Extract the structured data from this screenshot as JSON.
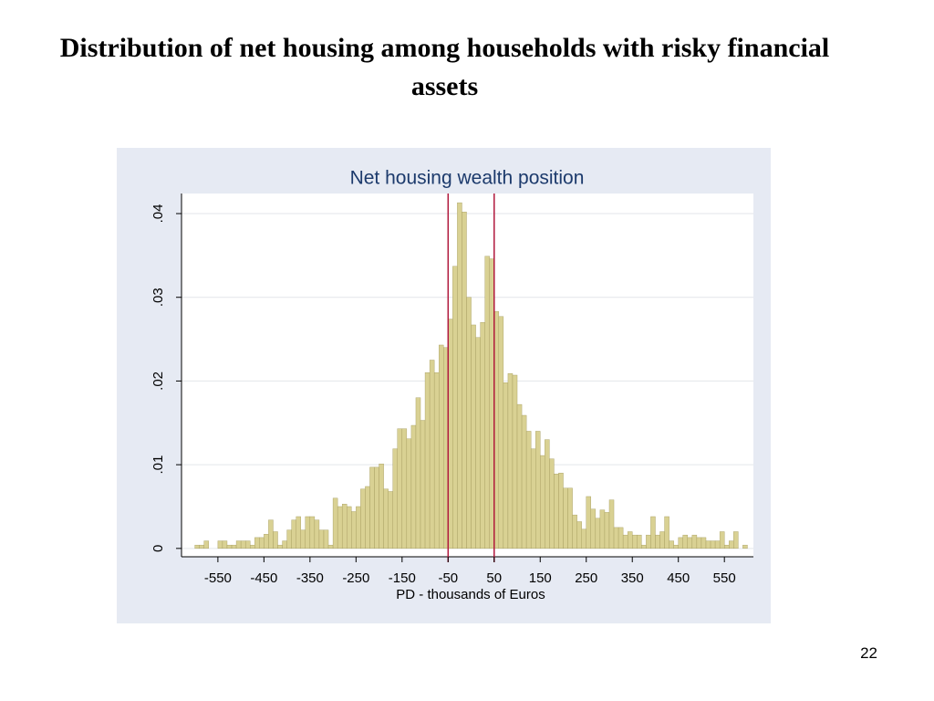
{
  "title": "Distribution of net housing among households with risky financial assets",
  "page_number": "22",
  "chart_data": {
    "type": "histogram",
    "title": "Net housing wealth position",
    "xlabel": "PD - thousands of Euros",
    "color": "#d9d193",
    "edge_color": "#a39a5c",
    "bins": [
      -600,
      -590,
      -580,
      -570,
      -560,
      -550,
      -540,
      -530,
      -520,
      -510,
      -500,
      -490,
      -480,
      -470,
      -460,
      -450,
      -440,
      -430,
      -420,
      -410,
      -400,
      -390,
      -380,
      -370,
      -360,
      -350,
      -340,
      -330,
      -320,
      -310,
      -300,
      -290,
      -280,
      -270,
      -260,
      -250,
      -240,
      -230,
      -220,
      -210,
      -200,
      -190,
      -180,
      -170,
      -160,
      -150,
      -140,
      -130,
      -120,
      -110,
      -100,
      -90,
      -80,
      -70,
      -60,
      -50,
      -40,
      -30,
      -20,
      -10,
      0,
      10,
      20,
      30,
      40,
      50,
      60,
      70,
      80,
      90,
      100,
      110,
      120,
      130,
      140,
      150,
      160,
      170,
      180,
      190,
      200,
      210,
      220,
      230,
      240,
      250,
      260,
      270,
      280,
      290,
      300,
      310,
      320,
      330,
      340,
      350,
      360,
      370,
      380,
      390,
      400,
      410,
      420,
      430,
      440,
      450,
      460,
      470,
      480,
      490,
      500,
      510,
      520,
      530,
      540,
      550,
      560,
      570,
      580,
      590,
      600
    ],
    "counts": [
      0.0004,
      0.0004,
      0.0009,
      0,
      0,
      0.0009,
      0.0009,
      0.0004,
      0.0004,
      0.0009,
      0.0009,
      0.0009,
      0.0004,
      0.0013,
      0.0013,
      0.0017,
      0.0034,
      0.002,
      0.0004,
      0.0009,
      0.0022,
      0.0034,
      0.0038,
      0.0022,
      0.0038,
      0.0038,
      0.0034,
      0.0022,
      0.0022,
      0.0004,
      0.006,
      0.005,
      0.0053,
      0.005,
      0.0044,
      0.005,
      0.0071,
      0.0074,
      0.0097,
      0.0097,
      0.0101,
      0.0071,
      0.0068,
      0.0119,
      0.0143,
      0.0143,
      0.0131,
      0.0147,
      0.018,
      0.0153,
      0.021,
      0.0225,
      0.021,
      0.0243,
      0.024,
      0.0274,
      0.0337,
      0.0413,
      0.0402,
      0.03,
      0.0267,
      0.0252,
      0.027,
      0.0349,
      0.0346,
      0.0283,
      0.0277,
      0.0198,
      0.0209,
      0.0207,
      0.0172,
      0.0159,
      0.014,
      0.0119,
      0.014,
      0.0111,
      0.013,
      0.0107,
      0.0089,
      0.009,
      0.0072,
      0.0072,
      0.004,
      0.0032,
      0.0023,
      0.0062,
      0.0047,
      0.0036,
      0.0046,
      0.0043,
      0.0058,
      0.0025,
      0.0025,
      0.0016,
      0.002,
      0.0016,
      0.0016,
      0.0004,
      0.0016,
      0.0038,
      0.0016,
      0.002,
      0.0038,
      0.0009,
      0.0004,
      0.0013,
      0.0016,
      0.0013,
      0.0016,
      0.0013,
      0.0013,
      0.0009,
      0.0009,
      0.0009,
      0.002,
      0.0004,
      0.0009,
      0.002,
      0,
      0.0004
    ],
    "reference_lines": [
      -50,
      50
    ],
    "reference_color": "#b0183c",
    "xlim": [
      -629,
      613
    ],
    "ylim": [
      -0.001,
      0.0424
    ],
    "xticks": [
      -550,
      -450,
      -350,
      -250,
      -150,
      -50,
      50,
      150,
      250,
      350,
      450,
      550
    ],
    "yticks": [
      0,
      {
        "value": 0.01,
        "label": ".01"
      },
      {
        "value": 0.02,
        "label": ".02"
      },
      {
        "value": 0.03,
        "label": ".03"
      },
      {
        "value": 0.04,
        "label": ".04"
      }
    ],
    "grid": true
  }
}
